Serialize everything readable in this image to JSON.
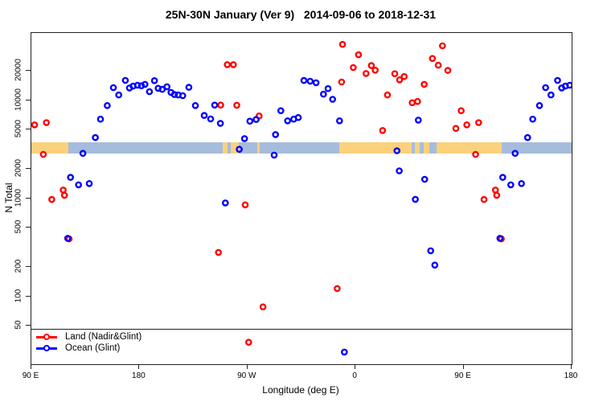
{
  "title": "25N-30N January (Ver 9)   2014-09-06 to 2018-12-31",
  "colors": {
    "land_series": "#ff0000",
    "ocean_series": "#0000ff",
    "band_land": "#fbd17b",
    "band_ocean": "#a6bcdc",
    "axis": "#222222"
  },
  "chart_data": {
    "type": "scatter",
    "title": "25N-30N January (Ver 9)   2014-09-06 to 2018-12-31",
    "xlabel": "Longitude (deg E)",
    "ylabel": "N Total",
    "x_range": [
      90,
      540
    ],
    "y_scale": "log",
    "y_range": [
      20.3,
      48400
    ],
    "grid": false,
    "legend_position": "bottom-left inside plot, separated by full-width rule",
    "x_ticks": [
      {
        "lon": 90,
        "label": "90 E"
      },
      {
        "lon": 180,
        "label": "180"
      },
      {
        "lon": 270,
        "label": "90 W"
      },
      {
        "lon": 360,
        "label": "0"
      },
      {
        "lon": 450,
        "label": "90 E"
      },
      {
        "lon": 540,
        "label": "180"
      }
    ],
    "y_ticks": [
      {
        "value": 50,
        "label": "50"
      },
      {
        "value": 100,
        "label": "100"
      },
      {
        "value": 200,
        "label": "200"
      },
      {
        "value": 500,
        "label": "500"
      },
      {
        "value": 1000,
        "label": "1000"
      },
      {
        "value": 2000,
        "label": "2000"
      },
      {
        "value": 5000,
        "label": "5000"
      },
      {
        "value": 10000,
        "label": "10000"
      },
      {
        "value": 20000,
        "label": "20000"
      }
    ],
    "land_ocean_band": {
      "description": "Latitude-band map strip drawn across plot at N~2800-3700",
      "y_top_value": 3700,
      "y_bottom_value": 2830,
      "segments": [
        {
          "from": 90,
          "to": 120.8,
          "type": "land"
        },
        {
          "from": 120.8,
          "to": 249.4,
          "type": "ocean"
        },
        {
          "from": 249.4,
          "to": 253.4,
          "type": "land"
        },
        {
          "from": 253.4,
          "to": 256.1,
          "type": "ocean"
        },
        {
          "from": 256.1,
          "to": 262.8,
          "type": "land"
        },
        {
          "from": 262.8,
          "to": 278.2,
          "type": "ocean"
        },
        {
          "from": 278.2,
          "to": 280.2,
          "type": "land"
        },
        {
          "from": 280.2,
          "to": 346.5,
          "type": "ocean"
        },
        {
          "from": 346.5,
          "to": 406.7,
          "type": "land"
        },
        {
          "from": 406.7,
          "to": 409.4,
          "type": "ocean"
        },
        {
          "from": 409.4,
          "to": 413.4,
          "type": "land"
        },
        {
          "from": 413.4,
          "to": 416.8,
          "type": "ocean"
        },
        {
          "from": 416.8,
          "to": 421.5,
          "type": "land"
        },
        {
          "from": 421.5,
          "to": 427.5,
          "type": "ocean"
        },
        {
          "from": 427.5,
          "to": 481.7,
          "type": "land"
        },
        {
          "from": 481.7,
          "to": 540,
          "type": "ocean"
        }
      ]
    },
    "series": [
      {
        "name": "Land (Nadir&Glint)",
        "color": "#ff0000",
        "points": [
          [
            92.7,
            5600
          ],
          [
            102.5,
            5900
          ],
          [
            100,
            2800
          ],
          [
            107,
            970
          ],
          [
            116.5,
            1210
          ],
          [
            117.6,
            1070
          ],
          [
            121.4,
            385
          ],
          [
            245.8,
            280
          ],
          [
            247.7,
            8900
          ],
          [
            253.2,
            23000
          ],
          [
            258.3,
            23000
          ],
          [
            261.1,
            8870
          ],
          [
            268.1,
            855
          ],
          [
            271,
            34
          ],
          [
            279.7,
            6900
          ],
          [
            282.9,
            78
          ],
          [
            344.7,
            120
          ],
          [
            348.4,
            15300
          ],
          [
            349.2,
            37000
          ],
          [
            358.1,
            21500
          ],
          [
            362.5,
            29000
          ],
          [
            368.8,
            18700
          ],
          [
            373.2,
            22500
          ],
          [
            376.4,
            20200
          ],
          [
            382.6,
            4900
          ],
          [
            386.6,
            11300
          ],
          [
            392.7,
            18600
          ],
          [
            396.7,
            16100
          ],
          [
            400.5,
            17400
          ],
          [
            407.2,
            9400
          ],
          [
            411.6,
            9700
          ],
          [
            417.2,
            14500
          ],
          [
            424,
            26600
          ],
          [
            428.9,
            22700
          ],
          [
            432.4,
            35800
          ],
          [
            436.9,
            20100
          ],
          [
            443.6,
            5150
          ],
          [
            448,
            7800
          ],
          [
            452.7,
            5600
          ],
          [
            460,
            2800
          ],
          [
            462.5,
            5900
          ],
          [
            467,
            970
          ],
          [
            476.5,
            1210
          ],
          [
            477.6,
            1070
          ],
          [
            481.4,
            385
          ]
        ]
      },
      {
        "name": "Ocean (Glint)",
        "color": "#0000ff",
        "points": [
          [
            120.3,
            390
          ],
          [
            122.6,
            1630
          ],
          [
            129.3,
            1370
          ],
          [
            132.9,
            2870
          ],
          [
            138.2,
            1410
          ],
          [
            143.3,
            4150
          ],
          [
            147.6,
            6400
          ],
          [
            153.2,
            8800
          ],
          [
            158.3,
            13400
          ],
          [
            162.8,
            11300
          ],
          [
            168.3,
            15900
          ],
          [
            171.7,
            13300
          ],
          [
            174.8,
            13900
          ],
          [
            178.4,
            14200
          ],
          [
            181.7,
            14000
          ],
          [
            184.6,
            14500
          ],
          [
            188.4,
            12200
          ],
          [
            192.5,
            15800
          ],
          [
            195.6,
            13200
          ],
          [
            199,
            12900
          ],
          [
            203,
            13700
          ],
          [
            206.3,
            12000
          ],
          [
            209.2,
            11400
          ],
          [
            212.3,
            11300
          ],
          [
            216.1,
            11100
          ],
          [
            221.2,
            13500
          ],
          [
            226.6,
            8800
          ],
          [
            234,
            6980
          ],
          [
            239.3,
            6440
          ],
          [
            242.7,
            8900
          ],
          [
            247.4,
            5800
          ],
          [
            251.6,
            895
          ],
          [
            263.2,
            3150
          ],
          [
            267.5,
            4050
          ],
          [
            272,
            6100
          ],
          [
            277.2,
            6350
          ],
          [
            292.2,
            2750
          ],
          [
            293.4,
            4450
          ],
          [
            297.8,
            7800
          ],
          [
            303.4,
            6150
          ],
          [
            308.5,
            6400
          ],
          [
            312.3,
            6650
          ],
          [
            317,
            15850
          ],
          [
            322.2,
            15600
          ],
          [
            327.1,
            15050
          ],
          [
            333.3,
            11500
          ],
          [
            337.1,
            13100
          ],
          [
            340.9,
            10200
          ],
          [
            346.7,
            6150
          ],
          [
            350.7,
            27
          ],
          [
            394.5,
            3050
          ],
          [
            396.4,
            1900
          ],
          [
            409.8,
            975
          ],
          [
            412.3,
            6250
          ],
          [
            417.6,
            1560
          ],
          [
            422.6,
            291
          ],
          [
            426,
            208
          ],
          [
            480.3,
            390
          ],
          [
            482.6,
            1630
          ],
          [
            489.3,
            1370
          ],
          [
            492.9,
            2870
          ],
          [
            498.2,
            1410
          ],
          [
            503.3,
            4150
          ],
          [
            507.6,
            6400
          ],
          [
            513.2,
            8800
          ],
          [
            518.3,
            13400
          ],
          [
            522.8,
            11300
          ],
          [
            528.3,
            15900
          ],
          [
            531.7,
            13300
          ],
          [
            534.8,
            13900
          ],
          [
            538.4,
            14200
          ]
        ]
      }
    ]
  }
}
